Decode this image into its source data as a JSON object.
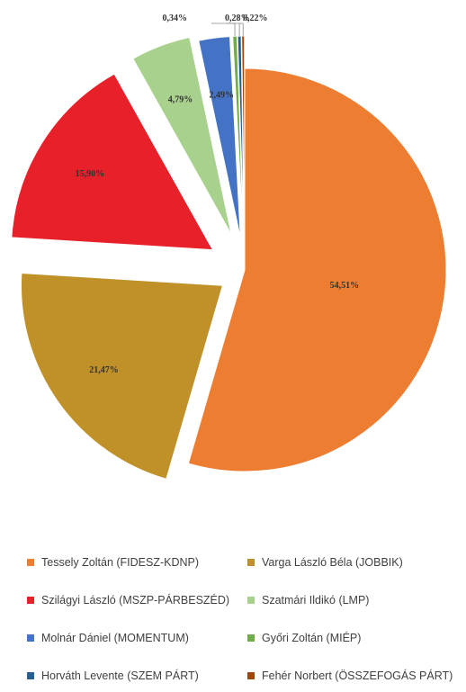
{
  "chart_data": {
    "type": "pie",
    "labels_format": "percent",
    "slices": [
      {
        "name": "Tessely Zoltán (FIDESZ-KDNP)",
        "label": "54,51%",
        "value": 54.51,
        "color": "#ED7D31"
      },
      {
        "name": "Varga László Béla (JOBBIK)",
        "label": "21,47%",
        "value": 21.47,
        "color": "#BF9128"
      },
      {
        "name": "Szilágyi László (MSZP-PÁRBESZÉD)",
        "label": "15,90%",
        "value": 15.9,
        "color": "#E8202A"
      },
      {
        "name": "Szatmári Ildikó (LMP)",
        "label": "4,79%",
        "value": 4.79,
        "color": "#A9D18E"
      },
      {
        "name": "Molnár Dániel (MOMENTUM)",
        "label": "2,49%",
        "value": 2.49,
        "color": "#4472C4"
      },
      {
        "name": "Győri Zoltán (MIÉP)",
        "label": "0,34%",
        "value": 0.34,
        "color": "#70AD47"
      },
      {
        "name": "Horváth Levente (SZEM PÁRT)",
        "label": "0,28%",
        "value": 0.28,
        "color": "#255E91"
      },
      {
        "name": "Fehér Norbert (ÖSSZEFOGÁS PÁRT)",
        "label": "0,22%",
        "value": 0.22,
        "color": "#9E480E"
      }
    ],
    "legend_position": "bottom",
    "exploded": true
  }
}
